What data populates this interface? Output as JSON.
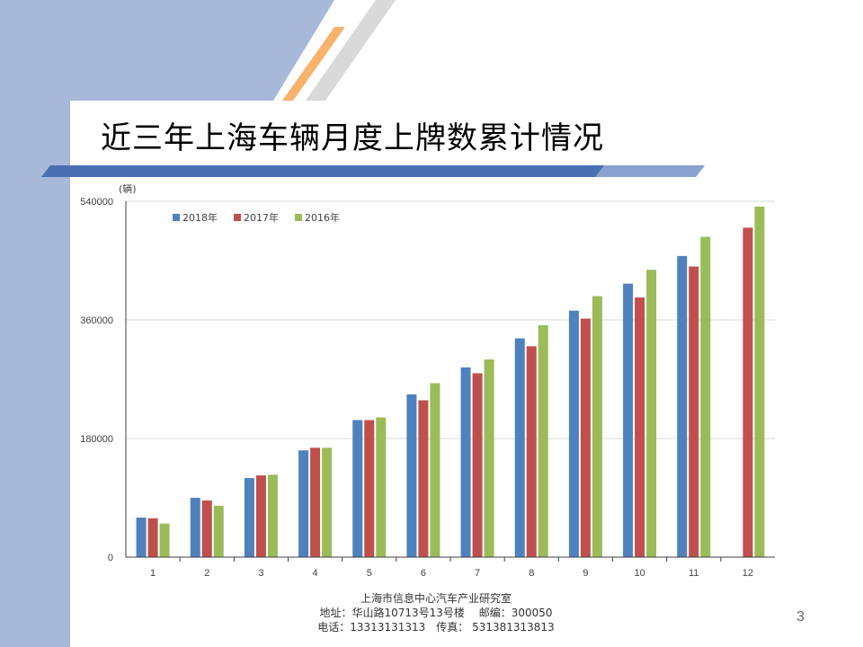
{
  "slide": {
    "title": "近三年上海车辆月度上牌数累计情况",
    "page_number": "3",
    "colors": {
      "left_band": "#a7b8d9",
      "title_bar": "#4a6fb3",
      "title_bar_light": "#8aa2d0",
      "accent_orange": "#f7b26b",
      "accent_grey": "#d9d9d9"
    }
  },
  "footer": {
    "line1": "上海市信息中心汽车产业研究室",
    "line2": "地址：华山路10713号13号楼　 邮编：300050",
    "line3": "电话：13313131313　传真： 531381313813"
  },
  "chart_data": {
    "type": "bar",
    "title": "",
    "xlabel": "",
    "ylabel": "(辆)",
    "ylim": [
      0,
      540000
    ],
    "yticks": [
      0,
      180000,
      360000,
      540000
    ],
    "ytick_labels": [
      "0",
      "180000",
      "360000",
      "540000"
    ],
    "grid": true,
    "legend_position": "top-left",
    "categories": [
      "1",
      "2",
      "3",
      "4",
      "5",
      "6",
      "7",
      "8",
      "9",
      "10",
      "11",
      "12"
    ],
    "series": [
      {
        "name": "2018年",
        "color": "#4f81bd",
        "values": [
          60000,
          90000,
          120000,
          162000,
          208000,
          247000,
          288000,
          332000,
          374000,
          415000,
          457000,
          null
        ]
      },
      {
        "name": "2017年",
        "color": "#c0504d",
        "values": [
          59000,
          86000,
          124000,
          166000,
          208000,
          238000,
          279000,
          320000,
          362000,
          394000,
          441000,
          500000
        ]
      },
      {
        "name": "2016年",
        "color": "#9bbb59",
        "values": [
          51000,
          78000,
          125000,
          166000,
          212000,
          264000,
          300000,
          352000,
          396000,
          436000,
          486000,
          532000
        ]
      }
    ]
  }
}
